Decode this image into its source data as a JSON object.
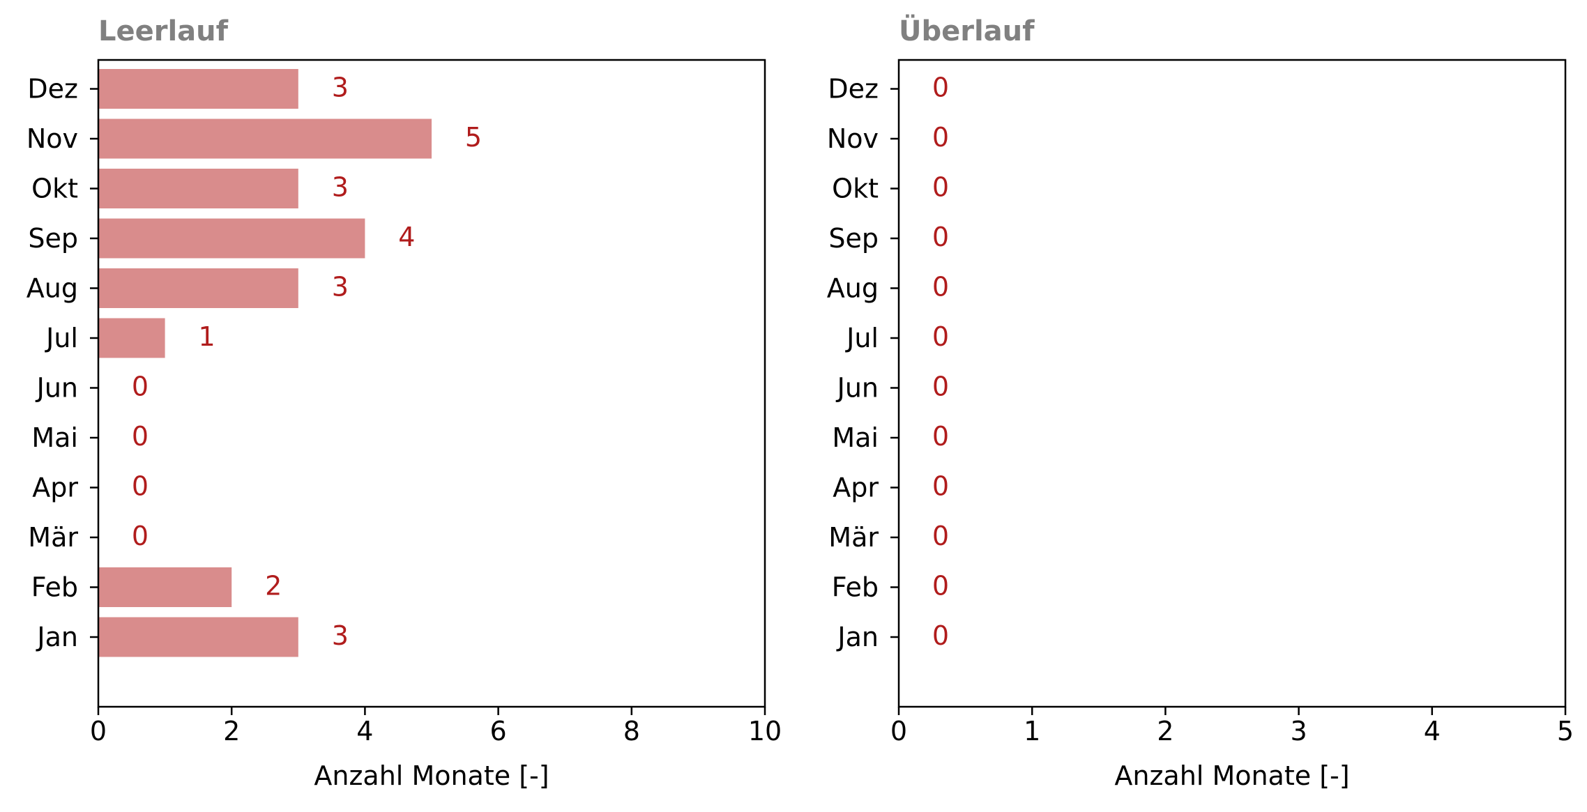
{
  "chart_data": [
    {
      "type": "bar",
      "orientation": "horizontal",
      "title": "Leerlauf",
      "xlabel": "Anzahl Monate [-]",
      "categories": [
        "Jan",
        "Feb",
        "Mär",
        "Apr",
        "Mai",
        "Jun",
        "Jul",
        "Aug",
        "Sep",
        "Okt",
        "Nov",
        "Dez"
      ],
      "values": [
        3,
        2,
        0,
        0,
        0,
        0,
        1,
        3,
        4,
        3,
        5,
        3
      ],
      "data_labels": [
        "3",
        "2",
        "0",
        "0",
        "0",
        "0",
        "1",
        "3",
        "4",
        "3",
        "5",
        "3"
      ],
      "xlim": [
        0,
        10
      ],
      "xticks": [
        "0",
        "2",
        "4",
        "6",
        "8",
        "10"
      ],
      "grid": false
    },
    {
      "type": "bar",
      "orientation": "horizontal",
      "title": "Überlauf",
      "xlabel": "Anzahl Monate [-]",
      "categories": [
        "Jan",
        "Feb",
        "Mär",
        "Apr",
        "Mai",
        "Jun",
        "Jul",
        "Aug",
        "Sep",
        "Okt",
        "Nov",
        "Dez"
      ],
      "values": [
        0,
        0,
        0,
        0,
        0,
        0,
        0,
        0,
        0,
        0,
        0,
        0
      ],
      "data_labels": [
        "0",
        "0",
        "0",
        "0",
        "0",
        "0",
        "0",
        "0",
        "0",
        "0",
        "0",
        "0"
      ],
      "xlim": [
        0,
        5
      ],
      "xticks": [
        "0",
        "1",
        "2",
        "3",
        "4",
        "5"
      ],
      "grid": false
    }
  ],
  "colors": {
    "bar": "#d98c8c",
    "value_label": "#b01c1c",
    "title": "#808080"
  }
}
